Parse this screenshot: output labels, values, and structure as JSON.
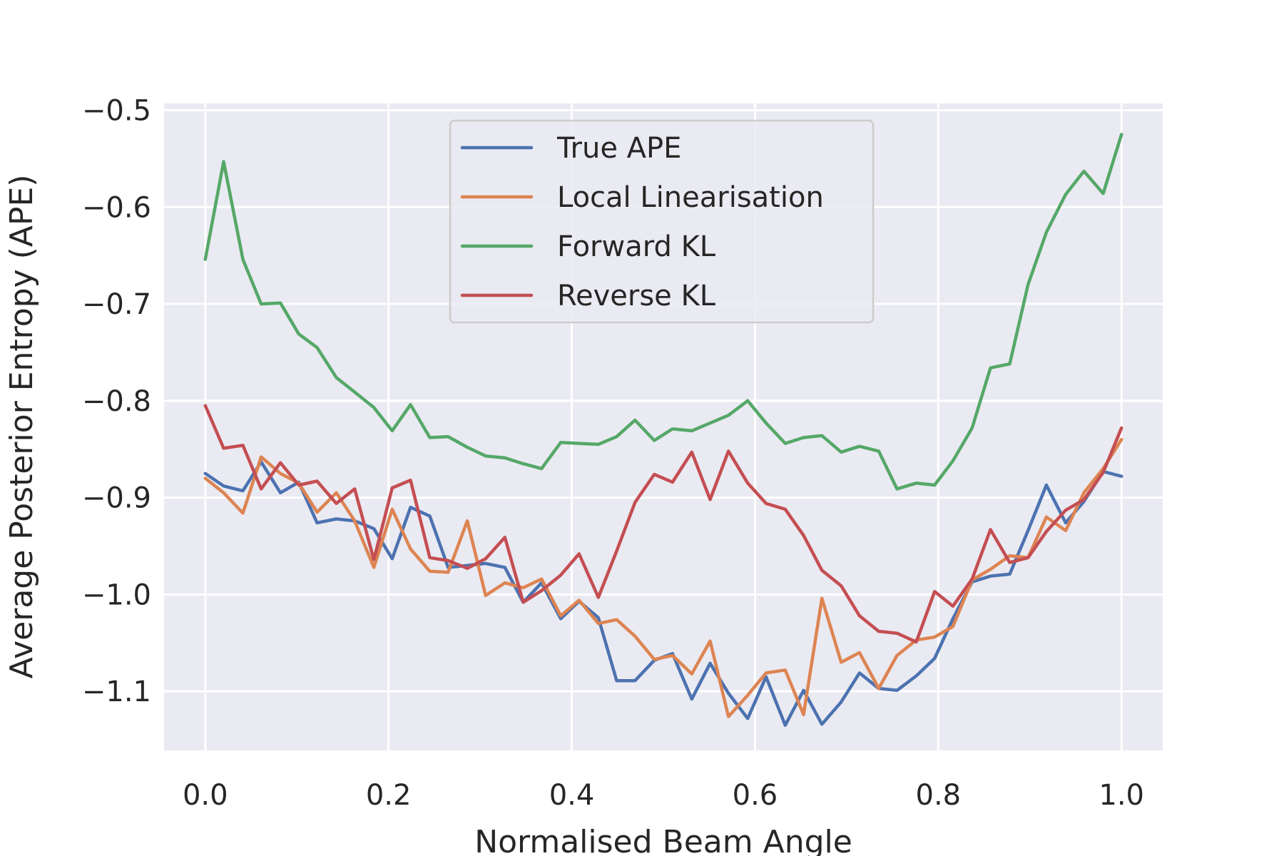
{
  "chart_data": {
    "type": "line",
    "title": "",
    "xlabel": "Normalised Beam Angle",
    "ylabel": "Average Posterior Entropy (APE)",
    "xlim": [
      -0.045,
      1.045
    ],
    "ylim": [
      -1.161,
      -0.493
    ],
    "xticks": [
      0.0,
      0.2,
      0.4,
      0.6,
      0.8,
      1.0
    ],
    "xtick_labels": [
      "0.0",
      "0.2",
      "0.4",
      "0.6",
      "0.8",
      "1.0"
    ],
    "yticks": [
      -0.5,
      -0.6,
      -0.7,
      -0.8,
      -0.9,
      -1.0,
      -1.1
    ],
    "ytick_labels": [
      "−0.5",
      "−0.6",
      "−0.7",
      "−0.8",
      "−0.9",
      "−1.0",
      "−1.1"
    ],
    "grid": true,
    "legend_position": "upper-center",
    "background_color": "#eaeaf2",
    "x": [
      0.0,
      0.02,
      0.041,
      0.061,
      0.082,
      0.102,
      0.122,
      0.143,
      0.163,
      0.184,
      0.204,
      0.224,
      0.245,
      0.265,
      0.286,
      0.306,
      0.327,
      0.347,
      0.367,
      0.388,
      0.408,
      0.429,
      0.449,
      0.469,
      0.49,
      0.51,
      0.531,
      0.551,
      0.571,
      0.592,
      0.612,
      0.633,
      0.653,
      0.673,
      0.694,
      0.714,
      0.735,
      0.755,
      0.776,
      0.796,
      0.816,
      0.837,
      0.857,
      0.878,
      0.898,
      0.918,
      0.939,
      0.959,
      0.98,
      1.0
    ],
    "series": [
      {
        "name": "True APE",
        "color": "#4c72b0",
        "values": [
          -0.875,
          -0.888,
          -0.893,
          -0.863,
          -0.895,
          -0.884,
          -0.926,
          -0.922,
          -0.924,
          -0.932,
          -0.963,
          -0.91,
          -0.919,
          -0.972,
          -0.97,
          -0.968,
          -0.972,
          -1.008,
          -0.988,
          -1.025,
          -1.007,
          -1.024,
          -1.089,
          -1.089,
          -1.068,
          -1.061,
          -1.108,
          -1.071,
          -1.102,
          -1.128,
          -1.085,
          -1.135,
          -1.099,
          -1.134,
          -1.111,
          -1.081,
          -1.097,
          -1.099,
          -1.084,
          -1.066,
          -1.025,
          -0.987,
          -0.981,
          -0.979,
          -0.934,
          -0.887,
          -0.926,
          -0.904,
          -0.873,
          -0.878
        ]
      },
      {
        "name": "Local Linearisation",
        "color": "#dd8452",
        "values": [
          -0.88,
          -0.895,
          -0.916,
          -0.858,
          -0.875,
          -0.885,
          -0.915,
          -0.895,
          -0.924,
          -0.972,
          -0.912,
          -0.953,
          -0.976,
          -0.977,
          -0.924,
          -1.001,
          -0.988,
          -0.993,
          -0.984,
          -1.022,
          -1.006,
          -1.03,
          -1.026,
          -1.043,
          -1.067,
          -1.063,
          -1.082,
          -1.048,
          -1.126,
          -1.104,
          -1.081,
          -1.078,
          -1.124,
          -1.004,
          -1.07,
          -1.06,
          -1.097,
          -1.063,
          -1.047,
          -1.044,
          -1.033,
          -0.985,
          -0.974,
          -0.96,
          -0.962,
          -0.92,
          -0.934,
          -0.895,
          -0.87,
          -0.84
        ]
      },
      {
        "name": "Forward KL",
        "color": "#55a868",
        "values": [
          -0.654,
          -0.553,
          -0.654,
          -0.7,
          -0.699,
          -0.731,
          -0.745,
          -0.776,
          -0.791,
          -0.807,
          -0.831,
          -0.804,
          -0.838,
          -0.837,
          -0.848,
          -0.857,
          -0.859,
          -0.865,
          -0.87,
          -0.843,
          -0.844,
          -0.845,
          -0.837,
          -0.82,
          -0.841,
          -0.829,
          -0.831,
          -0.823,
          -0.815,
          -0.8,
          -0.823,
          -0.844,
          -0.838,
          -0.836,
          -0.853,
          -0.847,
          -0.852,
          -0.891,
          -0.885,
          -0.887,
          -0.862,
          -0.828,
          -0.766,
          -0.762,
          -0.68,
          -0.626,
          -0.587,
          -0.563,
          -0.586,
          -0.525
        ]
      },
      {
        "name": "Reverse KL",
        "color": "#c44e52",
        "values": [
          -0.805,
          -0.849,
          -0.846,
          -0.891,
          -0.864,
          -0.887,
          -0.883,
          -0.906,
          -0.891,
          -0.964,
          -0.89,
          -0.882,
          -0.962,
          -0.965,
          -0.973,
          -0.963,
          -0.941,
          -1.008,
          -0.996,
          -0.98,
          -0.958,
          -1.003,
          -0.955,
          -0.905,
          -0.876,
          -0.884,
          -0.853,
          -0.902,
          -0.852,
          -0.885,
          -0.906,
          -0.912,
          -0.939,
          -0.975,
          -0.991,
          -1.022,
          -1.038,
          -1.04,
          -1.049,
          -0.997,
          -1.012,
          -0.984,
          -0.933,
          -0.967,
          -0.962,
          -0.935,
          -0.913,
          -0.902,
          -0.874,
          -0.828
        ]
      }
    ]
  }
}
